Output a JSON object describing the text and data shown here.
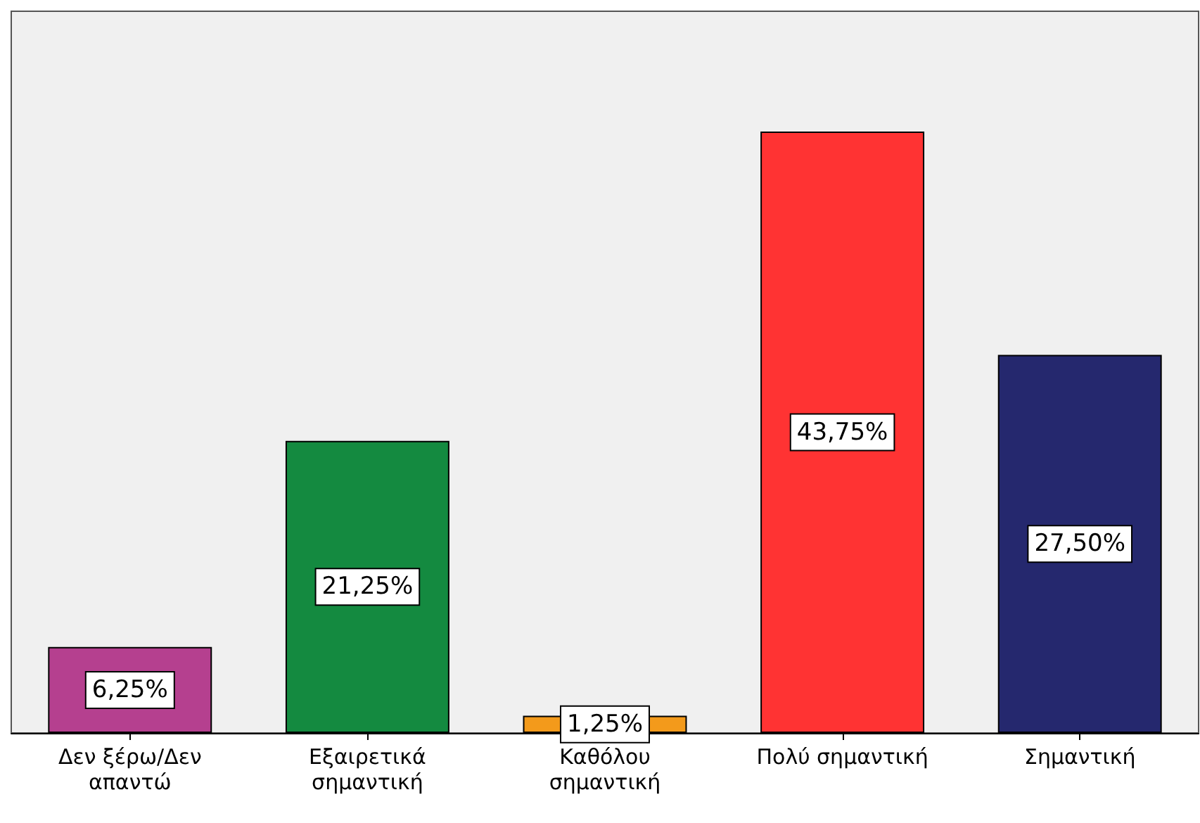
{
  "chart_data": {
    "type": "bar",
    "categories": [
      "Δεν ξέρω/Δεν απαντώ",
      "Εξαιρετικά σημαντική",
      "Καθόλου σημαντική",
      "Πολύ σημαντική",
      "Σημαντική"
    ],
    "values": [
      6.25,
      21.25,
      1.25,
      43.75,
      27.5
    ],
    "colors": [
      "#b5408f",
      "#148a40",
      "#f39a1b",
      "#ff3333",
      "#25286e"
    ],
    "value_labels": [
      "6,25%",
      "21,25%",
      "1,25%",
      "43,75%",
      "27,50%"
    ]
  }
}
